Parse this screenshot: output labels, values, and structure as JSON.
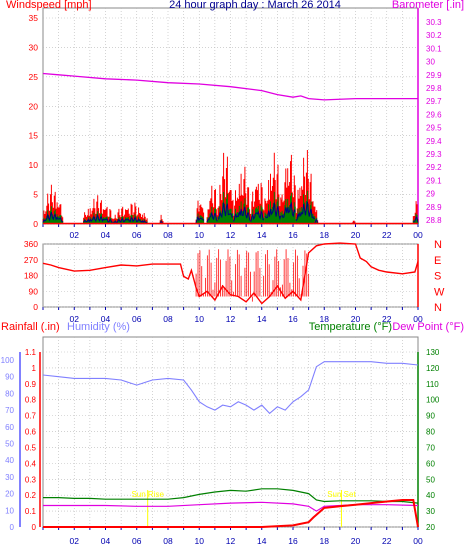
{
  "header": {
    "windspeed_label": "Windspeed [mph]",
    "title": "24 hour graph day : March 26 2014",
    "barometer_label": "Barometer [.in]"
  },
  "panel3_labels": {
    "rainfall": "Rainfall (.in)",
    "humidity": "Humidity (%)",
    "temperature": "Temperature (°F)",
    "dewpoint": "Dew Point (°F)",
    "sunrise": "Sun Rise",
    "sunset": "Sun Set"
  },
  "colors": {
    "wind": "#ff0000",
    "gust": "#000080",
    "avg_wind": "#008000",
    "barometer": "#e000e0",
    "wind_dir": "#ff0000",
    "rain": "#ff0000",
    "humidity": "#8080ff",
    "temperature": "#008000",
    "dewpoint": "#e000e0",
    "grid": "#b8b8b8",
    "tick_blue": "#0000b0",
    "sun_marker": "#ffff00"
  },
  "x_tick_labels": [
    "02",
    "04",
    "06",
    "08",
    "10",
    "12",
    "14",
    "16",
    "18",
    "20",
    "22",
    "00"
  ],
  "chart_data": [
    {
      "type": "line",
      "name_left": "Windspeed [mph]",
      "name_right": "Barometer [.in]",
      "title": "24 hour graph day : March 26 2014",
      "x_unit": "hour",
      "xlim": [
        0,
        24
      ],
      "ylim_left": [
        0,
        35
      ],
      "ylim_right": [
        28.8,
        30.3
      ],
      "y_ticks_left": [
        "0",
        "5",
        "10",
        "15",
        "20",
        "25",
        "30",
        "35"
      ],
      "y_ticks_right": [
        "28.8",
        "28.9",
        "29",
        "29.1",
        "29.2",
        "29.3",
        "29.4",
        "29.5",
        "29.6",
        "29.7",
        "29.8",
        "29.9",
        "30",
        "30.1",
        "30.2",
        "30.3"
      ],
      "barometer": {
        "x": [
          0,
          1,
          2,
          4,
          6,
          8,
          10,
          12,
          14,
          15,
          16,
          16.5,
          17,
          18,
          20,
          22,
          24
        ],
        "y": [
          29.91,
          29.9,
          29.89,
          29.87,
          29.86,
          29.84,
          29.83,
          29.81,
          29.78,
          29.75,
          29.73,
          29.74,
          29.72,
          29.71,
          29.72,
          29.72,
          29.72
        ]
      },
      "wind_bursts": [
        {
          "start": 0,
          "end": 1.3,
          "peak": 7
        },
        {
          "start": 2.6,
          "end": 4.5,
          "peak": 5
        },
        {
          "start": 4.5,
          "end": 6.7,
          "peak": 4
        },
        {
          "start": 7.5,
          "end": 7.7,
          "peak": 2
        },
        {
          "start": 9.8,
          "end": 10.3,
          "peak": 6
        },
        {
          "start": 10.5,
          "end": 11.2,
          "peak": 8
        },
        {
          "start": 11.2,
          "end": 12.2,
          "peak": 13
        },
        {
          "start": 12.2,
          "end": 13.3,
          "peak": 11
        },
        {
          "start": 13.3,
          "end": 14.2,
          "peak": 10
        },
        {
          "start": 14.2,
          "end": 15.3,
          "peak": 13
        },
        {
          "start": 15.3,
          "end": 16.2,
          "peak": 15
        },
        {
          "start": 16.2,
          "end": 17.4,
          "peak": 13
        },
        {
          "start": 17.4,
          "end": 17.6,
          "peak": 3
        },
        {
          "start": 19.8,
          "end": 20.0,
          "peak": 1
        },
        {
          "start": 23.7,
          "end": 24,
          "peak": 5
        }
      ]
    },
    {
      "type": "line",
      "name": "Wind Direction",
      "x_unit": "hour",
      "xlim": [
        0,
        24
      ],
      "ylim": [
        0,
        360
      ],
      "y_ticks": [
        "0",
        "90",
        "180",
        "270",
        "360"
      ],
      "compass_labels": [
        "N",
        "W",
        "S",
        "E",
        "N"
      ],
      "x": [
        0,
        0.5,
        1,
        2,
        3,
        4,
        5,
        6,
        7,
        8,
        8.8,
        9,
        9.3,
        9.5,
        9.8,
        10,
        10.5,
        11,
        11.5,
        12,
        12.5,
        13,
        13.5,
        14,
        14.5,
        15,
        15.5,
        16,
        16.5,
        17,
        17.5,
        18,
        19,
        20,
        20.3,
        20.7,
        21,
        21.5,
        22,
        23,
        23.8,
        24
      ],
      "y": [
        250,
        240,
        225,
        205,
        210,
        225,
        240,
        235,
        245,
        245,
        245,
        175,
        160,
        210,
        110,
        60,
        90,
        40,
        120,
        70,
        60,
        30,
        80,
        20,
        60,
        120,
        50,
        90,
        40,
        310,
        350,
        360,
        365,
        360,
        280,
        260,
        230,
        210,
        200,
        190,
        200,
        260
      ]
    },
    {
      "type": "line",
      "x_unit": "hour",
      "xlim": [
        0,
        24
      ],
      "ylim_rain": [
        0,
        1.1
      ],
      "ylim_humidity": [
        0,
        100
      ],
      "ylim_temperature": [
        20,
        130
      ],
      "y_ticks_rain": [
        "0",
        "0.1",
        "0.2",
        "0.3",
        "0.4",
        "0.5",
        "0.6",
        "0.7",
        "0.8",
        "0.9",
        "1",
        "1.1"
      ],
      "y_ticks_humidity": [
        "0",
        "10",
        "20",
        "30",
        "40",
        "50",
        "60",
        "70",
        "80",
        "90",
        "100"
      ],
      "y_ticks_temperature": [
        "20",
        "30",
        "40",
        "50",
        "60",
        "70",
        "80",
        "90",
        "100",
        "110",
        "120",
        "130"
      ],
      "sunrise_hour": 6.7,
      "sunset_hour": 19.1,
      "humidity": {
        "x": [
          0,
          1,
          2,
          3,
          4,
          5,
          6,
          7,
          8,
          9,
          9.5,
          10,
          10.5,
          11,
          11.5,
          12,
          12.5,
          13,
          13.5,
          14,
          14.5,
          15,
          15.5,
          16,
          16.5,
          17,
          17.5,
          18,
          19,
          20,
          21,
          22,
          23,
          24
        ],
        "y": [
          91,
          90,
          89,
          89,
          89,
          88,
          85,
          88,
          89,
          88,
          82,
          75,
          72,
          70,
          73,
          72,
          75,
          73,
          70,
          73,
          68,
          72,
          70,
          75,
          78,
          82,
          96,
          99,
          99,
          99,
          99,
          98,
          98,
          97
        ]
      },
      "temperature": {
        "x": [
          0,
          1,
          2,
          3,
          4,
          5,
          6,
          7,
          8,
          9,
          10,
          11,
          12,
          13,
          14,
          15,
          16,
          17,
          17.5,
          18,
          19,
          20,
          21,
          22,
          23,
          24
        ],
        "y": [
          38.5,
          38.5,
          38,
          38,
          37.5,
          37.5,
          37.5,
          37.5,
          37.5,
          38.5,
          40.5,
          42,
          43,
          42.5,
          44,
          44,
          43,
          41,
          37,
          36,
          36.5,
          36.5,
          36.5,
          36,
          36,
          35
        ]
      },
      "dewpoint": {
        "x": [
          0,
          2,
          4,
          6,
          8,
          10,
          12,
          14,
          16,
          17,
          17.5,
          18,
          19,
          20,
          22,
          24
        ],
        "y": [
          33.5,
          33.5,
          33.5,
          33,
          33,
          34,
          35,
          35.5,
          34.5,
          33,
          30,
          33,
          33.5,
          34,
          34,
          33.5
        ]
      },
      "rainfall": {
        "x": [
          0,
          14,
          16,
          17,
          17.3,
          18,
          19,
          20,
          21,
          22,
          23,
          23.7,
          24
        ],
        "y": [
          0,
          0,
          0.01,
          0.03,
          0.06,
          0.12,
          0.13,
          0.14,
          0.15,
          0.16,
          0.17,
          0.17,
          0
        ]
      }
    }
  ]
}
